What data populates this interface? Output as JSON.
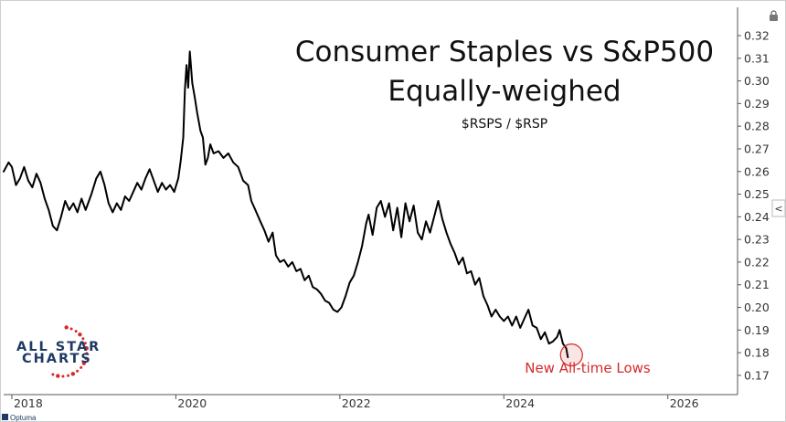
{
  "chart_data": {
    "type": "line",
    "title_lines": [
      "Consumer Staples vs S&P500",
      "Equally-weighed"
    ],
    "subtitle": "$RSPS / $RSP",
    "xlabel": "",
    "ylabel": "",
    "x_ticks": [
      "2018",
      "2020",
      "2022",
      "2024",
      "2026"
    ],
    "y_ticks": [
      "0.17",
      "0.18",
      "0.19",
      "0.20",
      "0.21",
      "0.22",
      "0.23",
      "0.24",
      "0.25",
      "0.26",
      "0.27",
      "0.28",
      "0.29",
      "0.30",
      "0.31",
      "0.32"
    ],
    "xlim": [
      2017.9,
      2026.85
    ],
    "ylim": [
      0.1615,
      0.3325
    ],
    "grid": false,
    "series": [
      {
        "values": [
          [
            2017.9,
            0.26
          ],
          [
            2017.96,
            0.264
          ],
          [
            2018.0,
            0.262
          ],
          [
            2018.05,
            0.254
          ],
          [
            2018.1,
            0.257
          ],
          [
            2018.15,
            0.262
          ],
          [
            2018.2,
            0.256
          ],
          [
            2018.25,
            0.253
          ],
          [
            2018.3,
            0.259
          ],
          [
            2018.35,
            0.255
          ],
          [
            2018.4,
            0.248
          ],
          [
            2018.45,
            0.243
          ],
          [
            2018.5,
            0.236
          ],
          [
            2018.55,
            0.234
          ],
          [
            2018.6,
            0.24
          ],
          [
            2018.65,
            0.247
          ],
          [
            2018.7,
            0.243
          ],
          [
            2018.75,
            0.246
          ],
          [
            2018.8,
            0.242
          ],
          [
            2018.85,
            0.248
          ],
          [
            2018.9,
            0.243
          ],
          [
            2018.97,
            0.25
          ],
          [
            2019.03,
            0.257
          ],
          [
            2019.08,
            0.26
          ],
          [
            2019.13,
            0.254
          ],
          [
            2019.18,
            0.246
          ],
          [
            2019.23,
            0.242
          ],
          [
            2019.28,
            0.246
          ],
          [
            2019.33,
            0.243
          ],
          [
            2019.38,
            0.249
          ],
          [
            2019.43,
            0.247
          ],
          [
            2019.48,
            0.251
          ],
          [
            2019.53,
            0.255
          ],
          [
            2019.58,
            0.252
          ],
          [
            2019.63,
            0.257
          ],
          [
            2019.68,
            0.261
          ],
          [
            2019.73,
            0.256
          ],
          [
            2019.78,
            0.251
          ],
          [
            2019.83,
            0.255
          ],
          [
            2019.88,
            0.252
          ],
          [
            2019.93,
            0.254
          ],
          [
            2019.98,
            0.251
          ],
          [
            2020.03,
            0.257
          ],
          [
            2020.06,
            0.265
          ],
          [
            2020.09,
            0.275
          ],
          [
            2020.11,
            0.296
          ],
          [
            2020.13,
            0.307
          ],
          [
            2020.15,
            0.297
          ],
          [
            2020.17,
            0.313
          ],
          [
            2020.2,
            0.299
          ],
          [
            2020.23,
            0.293
          ],
          [
            2020.26,
            0.286
          ],
          [
            2020.3,
            0.278
          ],
          [
            2020.33,
            0.275
          ],
          [
            2020.36,
            0.263
          ],
          [
            2020.39,
            0.266
          ],
          [
            2020.42,
            0.272
          ],
          [
            2020.46,
            0.268
          ],
          [
            2020.52,
            0.269
          ],
          [
            2020.58,
            0.266
          ],
          [
            2020.64,
            0.268
          ],
          [
            2020.7,
            0.264
          ],
          [
            2020.76,
            0.262
          ],
          [
            2020.82,
            0.256
          ],
          [
            2020.88,
            0.254
          ],
          [
            2020.92,
            0.247
          ],
          [
            2020.97,
            0.243
          ],
          [
            2021.03,
            0.238
          ],
          [
            2021.08,
            0.234
          ],
          [
            2021.13,
            0.229
          ],
          [
            2021.18,
            0.233
          ],
          [
            2021.22,
            0.223
          ],
          [
            2021.27,
            0.22
          ],
          [
            2021.32,
            0.221
          ],
          [
            2021.37,
            0.218
          ],
          [
            2021.42,
            0.22
          ],
          [
            2021.47,
            0.216
          ],
          [
            2021.52,
            0.217
          ],
          [
            2021.57,
            0.212
          ],
          [
            2021.62,
            0.214
          ],
          [
            2021.67,
            0.209
          ],
          [
            2021.72,
            0.208
          ],
          [
            2021.77,
            0.206
          ],
          [
            2021.82,
            0.203
          ],
          [
            2021.87,
            0.202
          ],
          [
            2021.92,
            0.199
          ],
          [
            2021.97,
            0.198
          ],
          [
            2022.02,
            0.2
          ],
          [
            2022.07,
            0.205
          ],
          [
            2022.12,
            0.211
          ],
          [
            2022.17,
            0.214
          ],
          [
            2022.22,
            0.22
          ],
          [
            2022.27,
            0.227
          ],
          [
            2022.32,
            0.237
          ],
          [
            2022.35,
            0.241
          ],
          [
            2022.4,
            0.232
          ],
          [
            2022.45,
            0.244
          ],
          [
            2022.5,
            0.247
          ],
          [
            2022.55,
            0.24
          ],
          [
            2022.6,
            0.246
          ],
          [
            2022.65,
            0.234
          ],
          [
            2022.7,
            0.244
          ],
          [
            2022.75,
            0.231
          ],
          [
            2022.8,
            0.246
          ],
          [
            2022.85,
            0.238
          ],
          [
            2022.9,
            0.245
          ],
          [
            2022.95,
            0.233
          ],
          [
            2023.0,
            0.23
          ],
          [
            2023.05,
            0.238
          ],
          [
            2023.1,
            0.233
          ],
          [
            2023.15,
            0.24
          ],
          [
            2023.2,
            0.247
          ],
          [
            2023.25,
            0.239
          ],
          [
            2023.3,
            0.233
          ],
          [
            2023.35,
            0.228
          ],
          [
            2023.4,
            0.224
          ],
          [
            2023.45,
            0.219
          ],
          [
            2023.5,
            0.222
          ],
          [
            2023.55,
            0.215
          ],
          [
            2023.6,
            0.216
          ],
          [
            2023.65,
            0.21
          ],
          [
            2023.7,
            0.213
          ],
          [
            2023.75,
            0.205
          ],
          [
            2023.8,
            0.201
          ],
          [
            2023.85,
            0.196
          ],
          [
            2023.9,
            0.199
          ],
          [
            2023.95,
            0.196
          ],
          [
            2024.0,
            0.194
          ],
          [
            2024.05,
            0.196
          ],
          [
            2024.1,
            0.192
          ],
          [
            2024.15,
            0.196
          ],
          [
            2024.2,
            0.191
          ],
          [
            2024.25,
            0.195
          ],
          [
            2024.3,
            0.199
          ],
          [
            2024.35,
            0.192
          ],
          [
            2024.4,
            0.191
          ],
          [
            2024.45,
            0.186
          ],
          [
            2024.5,
            0.189
          ],
          [
            2024.55,
            0.184
          ],
          [
            2024.6,
            0.185
          ],
          [
            2024.65,
            0.187
          ],
          [
            2024.68,
            0.19
          ],
          [
            2024.72,
            0.184
          ],
          [
            2024.76,
            0.182
          ],
          [
            2024.78,
            0.178
          ]
        ]
      }
    ],
    "annotation": {
      "text": "New All-time Lows",
      "point": [
        2024.78,
        0.179
      ],
      "color": "#d42a2a"
    },
    "line_color": "#000000"
  },
  "logo": {
    "line1": "ALL STAR",
    "line2": "CHARTS",
    "colors": {
      "text": "#1f3a63",
      "stars": "#d42a2a"
    }
  },
  "footer": {
    "brand": "Optuma"
  },
  "ui": {
    "lock_icon": "lock-icon",
    "collapse_icon": "chevron-left-icon",
    "collapse_symbol": "<"
  }
}
